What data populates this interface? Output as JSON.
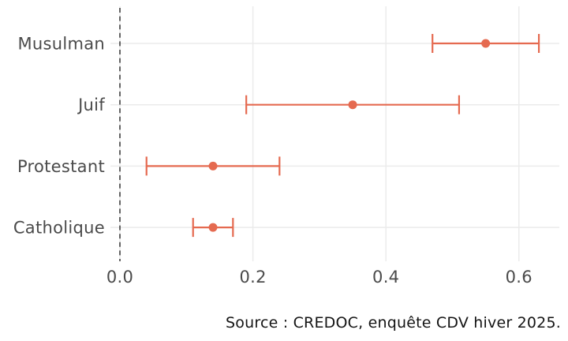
{
  "caption": {
    "text": "Source : CREDOC, enquête CDV hiver 2025."
  },
  "chart_data": {
    "type": "scatter",
    "subtype": "dot-plot-with-error-bars",
    "orientation": "horizontal",
    "title": "",
    "xlabel": "",
    "ylabel": "",
    "grid": true,
    "legend": false,
    "categories": [
      "Musulman",
      "Juif",
      "Protestant",
      "Catholique"
    ],
    "points": [
      {
        "category": "Musulman",
        "estimate": 0.55,
        "ci_low": 0.47,
        "ci_high": 0.63
      },
      {
        "category": "Juif",
        "estimate": 0.35,
        "ci_low": 0.19,
        "ci_high": 0.51
      },
      {
        "category": "Protestant",
        "estimate": 0.14,
        "ci_low": 0.04,
        "ci_high": 0.24
      },
      {
        "category": "Catholique",
        "estimate": 0.14,
        "ci_low": 0.11,
        "ci_high": 0.17
      }
    ],
    "x_axis": {
      "tick_values": [
        0.0,
        0.2,
        0.4,
        0.6
      ],
      "tick_labels": [
        "0.0",
        "0.2",
        "0.4",
        "0.6"
      ],
      "xlim": [
        -0.015,
        0.66
      ]
    },
    "reference_line_x": 0,
    "colors": {
      "series": "#E56A50",
      "grid": "#EBEBEB",
      "reference_line": "#555555",
      "axis_text": "#4A4A4A",
      "caption": "#141414"
    }
  }
}
